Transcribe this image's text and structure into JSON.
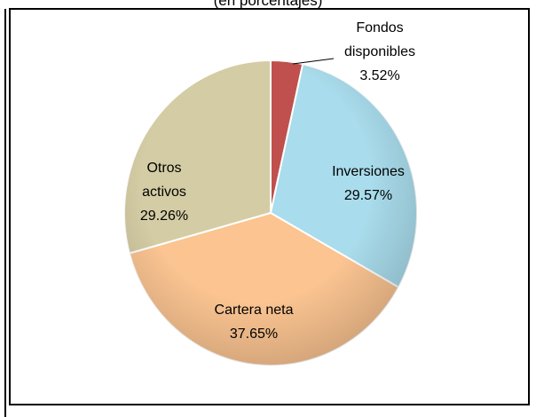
{
  "chart_data": {
    "type": "pie",
    "subtitle": "(en porcentajes)",
    "categories": [
      "Fondos disponibles",
      "Inversiones",
      "Cartera neta",
      "Otros activos"
    ],
    "values": [
      3.52,
      29.57,
      37.65,
      29.26
    ],
    "value_labels": [
      "3.52%",
      "29.57%",
      "37.65%",
      "29.26%"
    ],
    "colors": [
      "#c0504d",
      "#a9dcec",
      "#fbc491",
      "#d4cca4"
    ]
  }
}
